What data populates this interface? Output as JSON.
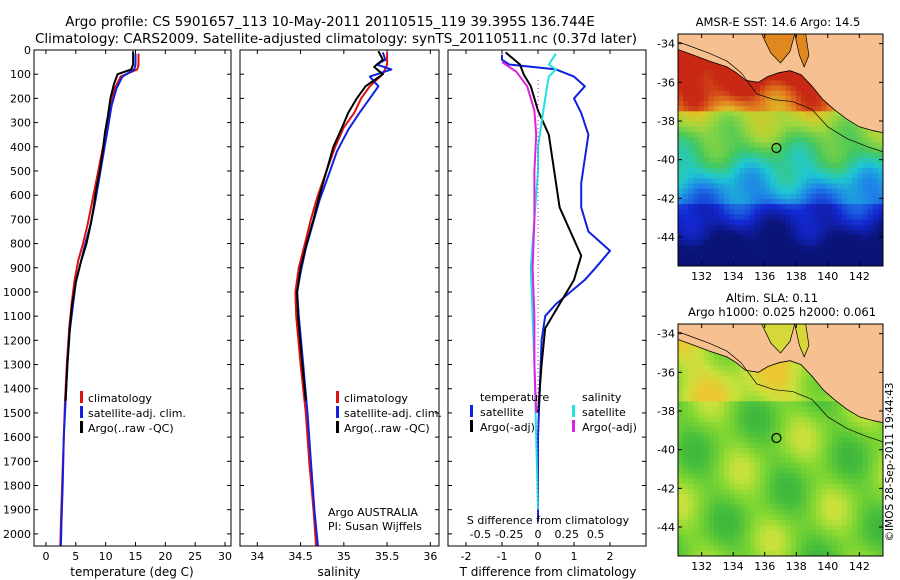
{
  "figure": {
    "title_line1": "Argo profile: CS 5901657_113 10-May-2011 20110515_119 39.395S 136.744E",
    "title_line2": "Climatology: CARS2009. Satellite-adjusted climatology: synTS_20110511.nc (0.37d later)",
    "footer_credit": "©IMOS 28-Sep-2011 19:44:43"
  },
  "colors": {
    "climatology": "#e01010",
    "satellite": "#1020e0",
    "argo": "#000000",
    "cyan": "#20e0e0",
    "magenta": "#e020e0",
    "land": "#f7c090",
    "coast": "#000000"
  },
  "chart_data": [
    {
      "id": "temperature",
      "type": "line",
      "xlabel": "temperature (deg C)",
      "ylabel": "",
      "xlim": [
        -2,
        31
      ],
      "ylim": [
        2050,
        0
      ],
      "xticks": [
        0,
        5,
        10,
        15,
        20,
        25,
        30
      ],
      "yticks": [
        0,
        100,
        200,
        300,
        400,
        500,
        600,
        700,
        800,
        900,
        1000,
        1100,
        1200,
        1300,
        1400,
        1500,
        1600,
        1700,
        1800,
        1900,
        2000
      ],
      "legend": [
        "climatology",
        "satellite-adj. clim.",
        "Argo(..raw -QC)"
      ],
      "series": [
        {
          "name": "climatology",
          "color_key": "climatology",
          "points": [
            [
              15.5,
              15
            ],
            [
              15.5,
              60
            ],
            [
              15.3,
              80
            ],
            [
              12.5,
              110
            ],
            [
              11.5,
              160
            ],
            [
              10.8,
              230
            ],
            [
              10.2,
              320
            ],
            [
              9.4,
              420
            ],
            [
              8.6,
              520
            ],
            [
              7.8,
              620
            ],
            [
              7.0,
              720
            ],
            [
              6.2,
              800
            ],
            [
              5.4,
              870
            ],
            [
              4.8,
              950
            ],
            [
              4.3,
              1050
            ],
            [
              3.9,
              1150
            ],
            [
              3.5,
              1300
            ],
            [
              3.2,
              1450
            ],
            [
              3.0,
              1600
            ],
            [
              2.7,
              1800
            ],
            [
              2.5,
              1950
            ],
            [
              2.4,
              2050
            ]
          ]
        },
        {
          "name": "satellite-adj. clim.",
          "color_key": "satellite",
          "points": [
            [
              15.0,
              15
            ],
            [
              15.0,
              60
            ],
            [
              14.8,
              80
            ],
            [
              12.8,
              110
            ],
            [
              11.8,
              160
            ],
            [
              11.0,
              230
            ],
            [
              10.4,
              320
            ],
            [
              9.7,
              420
            ],
            [
              9.0,
              520
            ],
            [
              8.3,
              620
            ],
            [
              7.5,
              720
            ],
            [
              6.6,
              800
            ],
            [
              5.8,
              880
            ],
            [
              5.0,
              960
            ],
            [
              4.5,
              1060
            ],
            [
              4.0,
              1160
            ],
            [
              3.6,
              1300
            ],
            [
              3.3,
              1450
            ],
            [
              3.0,
              1600
            ],
            [
              2.8,
              1800
            ],
            [
              2.6,
              1950
            ],
            [
              2.5,
              2050
            ]
          ]
        },
        {
          "name": "Argo(..raw -QC)",
          "color_key": "argo",
          "points": [
            [
              14.6,
              5
            ],
            [
              14.6,
              60
            ],
            [
              14.3,
              80
            ],
            [
              12.0,
              100
            ],
            [
              11.4,
              140
            ],
            [
              10.8,
              200
            ],
            [
              10.4,
              270
            ],
            [
              9.9,
              340
            ],
            [
              9.5,
              420
            ],
            [
              9.0,
              500
            ],
            [
              8.4,
              580
            ],
            [
              8.0,
              650
            ],
            [
              7.5,
              720
            ],
            [
              6.8,
              800
            ],
            [
              5.8,
              880
            ],
            [
              5.0,
              960
            ],
            [
              4.4,
              1050
            ],
            [
              4.0,
              1150
            ],
            [
              3.6,
              1300
            ],
            [
              3.3,
              1450
            ]
          ]
        }
      ]
    },
    {
      "id": "salinity",
      "type": "line",
      "xlabel": "salinity",
      "ylabel": "",
      "xlim": [
        33.8,
        36.1
      ],
      "ylim": [
        2050,
        0
      ],
      "xticks": [
        34,
        34.5,
        35,
        35.5,
        36
      ],
      "legend": [
        "climatology",
        "satellite-adj. clim.",
        "Argo(..raw -QC)"
      ],
      "annotation_line1": "Argo AUSTRALIA",
      "annotation_line2": "PI: Susan Wijffels",
      "series": [
        {
          "name": "climatology",
          "color_key": "climatology",
          "points": [
            [
              35.5,
              10
            ],
            [
              35.5,
              60
            ],
            [
              35.45,
              100
            ],
            [
              35.3,
              150
            ],
            [
              35.2,
              200
            ],
            [
              35.12,
              260
            ],
            [
              35.0,
              320
            ],
            [
              34.9,
              400
            ],
            [
              34.8,
              500
            ],
            [
              34.7,
              600
            ],
            [
              34.62,
              700
            ],
            [
              34.55,
              800
            ],
            [
              34.48,
              900
            ],
            [
              34.44,
              1000
            ],
            [
              34.45,
              1100
            ],
            [
              34.5,
              1300
            ],
            [
              34.56,
              1500
            ],
            [
              34.6,
              1700
            ],
            [
              34.65,
              1900
            ],
            [
              34.68,
              2050
            ]
          ]
        },
        {
          "name": "satellite-adj. clim.",
          "color_key": "satellite",
          "points": [
            [
              35.45,
              10
            ],
            [
              35.48,
              40
            ],
            [
              35.38,
              60
            ],
            [
              35.55,
              80
            ],
            [
              35.3,
              110
            ],
            [
              35.4,
              150
            ],
            [
              35.3,
              200
            ],
            [
              35.18,
              260
            ],
            [
              35.05,
              330
            ],
            [
              34.92,
              420
            ],
            [
              34.82,
              520
            ],
            [
              34.72,
              620
            ],
            [
              34.64,
              720
            ],
            [
              34.56,
              820
            ],
            [
              34.5,
              920
            ],
            [
              34.46,
              1000
            ],
            [
              34.48,
              1100
            ],
            [
              34.53,
              1300
            ],
            [
              34.58,
              1500
            ],
            [
              34.62,
              1700
            ],
            [
              34.66,
              1900
            ],
            [
              34.7,
              2050
            ]
          ]
        },
        {
          "name": "Argo(..raw -QC)",
          "color_key": "argo",
          "points": [
            [
              35.4,
              5
            ],
            [
              35.45,
              40
            ],
            [
              35.35,
              70
            ],
            [
              35.45,
              100
            ],
            [
              35.25,
              150
            ],
            [
              35.15,
              200
            ],
            [
              35.05,
              260
            ],
            [
              34.98,
              320
            ],
            [
              34.88,
              400
            ],
            [
              34.8,
              500
            ],
            [
              34.72,
              600
            ],
            [
              34.65,
              700
            ],
            [
              34.57,
              800
            ],
            [
              34.5,
              900
            ],
            [
              34.46,
              1000
            ],
            [
              34.47,
              1100
            ],
            [
              34.52,
              1300
            ],
            [
              34.56,
              1450
            ]
          ]
        }
      ]
    },
    {
      "id": "difference",
      "type": "line",
      "xlabel": "T difference from climatology",
      "x2label": "S difference from climatology",
      "ylabel": "",
      "xlim": [
        -2.5,
        3
      ],
      "ylim": [
        2050,
        0
      ],
      "xticks": [
        -2,
        -1,
        0,
        1,
        2
      ],
      "x2ticks": [
        -0.5,
        -0.25,
        0,
        0.25,
        0.5
      ],
      "x2tick_labels": [
        "-0.5",
        "-0.25",
        "0",
        "0.25",
        "0.5"
      ],
      "legend_temperature_header": "temperature",
      "legend_salinity_header": "salinity",
      "legend": [
        "satellite",
        "Argo(-adj)",
        "satellite",
        "Argo(-adj)"
      ],
      "series": [
        {
          "name": "temperature satellite",
          "color_key": "satellite",
          "points": [
            [
              -1.0,
              20
            ],
            [
              -1.0,
              40
            ],
            [
              -0.8,
              60
            ],
            [
              0.5,
              80
            ],
            [
              1.0,
              110
            ],
            [
              1.3,
              150
            ],
            [
              1.0,
              200
            ],
            [
              1.2,
              260
            ],
            [
              1.4,
              350
            ],
            [
              1.3,
              450
            ],
            [
              1.2,
              550
            ],
            [
              1.2,
              650
            ],
            [
              1.4,
              750
            ],
            [
              2.0,
              830
            ],
            [
              1.6,
              900
            ],
            [
              1.3,
              950
            ],
            [
              0.9,
              1000
            ],
            [
              0.5,
              1050
            ],
            [
              0.2,
              1100
            ],
            [
              0.1,
              1200
            ],
            [
              0.05,
              1400
            ],
            [
              0.0,
              1600
            ],
            [
              0.0,
              1800
            ],
            [
              0.0,
              1950
            ]
          ]
        },
        {
          "name": "temperature Argo(-adj)",
          "color_key": "argo",
          "points": [
            [
              -0.9,
              10
            ],
            [
              -0.5,
              60
            ],
            [
              -0.4,
              100
            ],
            [
              -0.2,
              150
            ],
            [
              0.0,
              250
            ],
            [
              0.3,
              350
            ],
            [
              0.4,
              450
            ],
            [
              0.5,
              550
            ],
            [
              0.6,
              650
            ],
            [
              0.9,
              750
            ],
            [
              1.2,
              850
            ],
            [
              1.0,
              950
            ],
            [
              0.6,
              1050
            ],
            [
              0.2,
              1150
            ],
            [
              0.1,
              1300
            ],
            [
              0.0,
              1500
            ]
          ]
        },
        {
          "name": "salinity satellite",
          "color_key": "cyan",
          "points": [
            [
              0.5,
              15
            ],
            [
              0.3,
              60
            ],
            [
              0.5,
              80
            ],
            [
              0.3,
              110
            ],
            [
              0.2,
              200
            ],
            [
              0.1,
              300
            ],
            [
              0.0,
              400
            ],
            [
              0.0,
              500
            ],
            [
              -0.1,
              700
            ],
            [
              -0.2,
              900
            ],
            [
              -0.15,
              1100
            ],
            [
              -0.1,
              1300
            ],
            [
              -0.05,
              1600
            ],
            [
              0.0,
              1900
            ]
          ]
        },
        {
          "name": "salinity Argo(-adj)",
          "color_key": "magenta",
          "points": [
            [
              -1.0,
              50
            ],
            [
              -0.6,
              90
            ],
            [
              -0.3,
              150
            ],
            [
              -0.1,
              250
            ],
            [
              -0.05,
              350
            ],
            [
              -0.1,
              500
            ],
            [
              -0.1,
              700
            ],
            [
              -0.15,
              900
            ],
            [
              -0.1,
              1100
            ],
            [
              -0.1,
              1300
            ],
            [
              -0.05,
              1500
            ]
          ]
        }
      ]
    },
    {
      "id": "sst-map",
      "type": "heatmap",
      "title": "AMSR-E SST: 14.6 Argo: 14.5",
      "xlim": [
        130.5,
        143.5
      ],
      "ylim": [
        -45.5,
        -33.5
      ],
      "xticks": [
        132,
        134,
        136,
        138,
        140,
        142
      ],
      "yticks": [
        -34,
        -36,
        -38,
        -40,
        -42,
        -44
      ],
      "argo_position": [
        136.744,
        -39.395
      ]
    },
    {
      "id": "sla-map",
      "type": "heatmap",
      "title_line1": "Altim. SLA: 0.11",
      "title_line2": "Argo h1000: 0.025 h2000: 0.061",
      "xlim": [
        130.5,
        143.5
      ],
      "ylim": [
        -45.5,
        -33.5
      ],
      "xticks": [
        132,
        134,
        136,
        138,
        140,
        142
      ],
      "yticks": [
        -34,
        -36,
        -38,
        -40,
        -42,
        -44
      ],
      "argo_position": [
        136.744,
        -39.395
      ]
    }
  ]
}
